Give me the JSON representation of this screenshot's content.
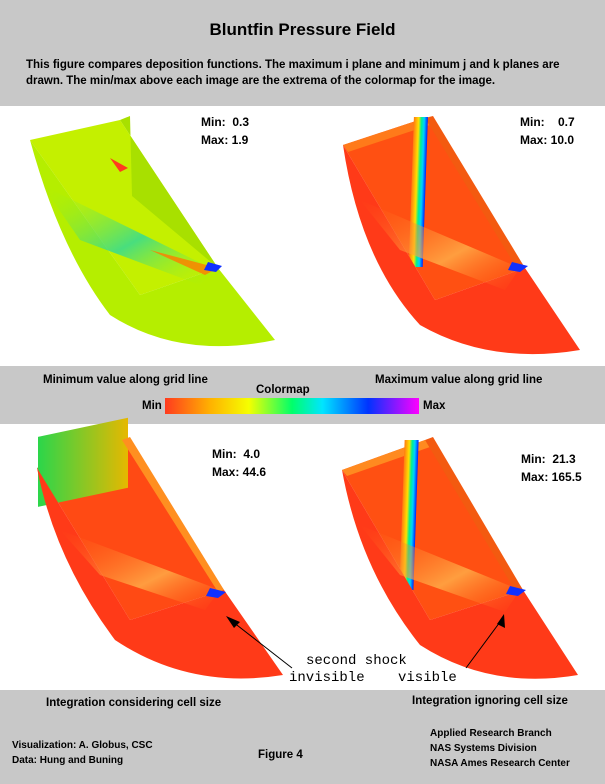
{
  "title": "Bluntfin Pressure Field",
  "description": "This figure compares deposition functions. The maximum i plane and minimum j and k planes are drawn.  The min/max above each image are the extrema of the colormap for the image.",
  "panels": [
    {
      "min": "Min:  0.3",
      "max": "Max: 1.9"
    },
    {
      "min": "Min:    0.7",
      "max": "Max: 10.0"
    },
    {
      "min": "Min:  4.0",
      "max": "Max: 44.6"
    },
    {
      "min": "Min:  21.3",
      "max": "Max: 165.5"
    }
  ],
  "captions": {
    "min_line": "Minimum value along grid line",
    "max_line": "Maximum value along grid line",
    "colormap": "Colormap",
    "cmap_min": "Min",
    "cmap_max": "Max",
    "integ_cell": "Integration considering cell size",
    "integ_nocell": "Integration ignoring cell size"
  },
  "annotations": {
    "second_shock": "second shock",
    "invisible": "invisible",
    "visible": "visible"
  },
  "footer": {
    "visualization": "Visualization: A. Globus, CSC",
    "data": "Data: Hung and Buning",
    "figure": "Figure 4",
    "org1": "Applied Research Branch",
    "org2": "NAS Systems Division",
    "org3": "NASA Ames Research Center"
  },
  "colors": {
    "background": "#c8c8c8",
    "panel": "#ffffff",
    "colormap": [
      "#ff3b1f",
      "#ffb300",
      "#f5ff00",
      "#00ff6a",
      "#00e5ff",
      "#0033ff",
      "#ff00ff"
    ]
  }
}
